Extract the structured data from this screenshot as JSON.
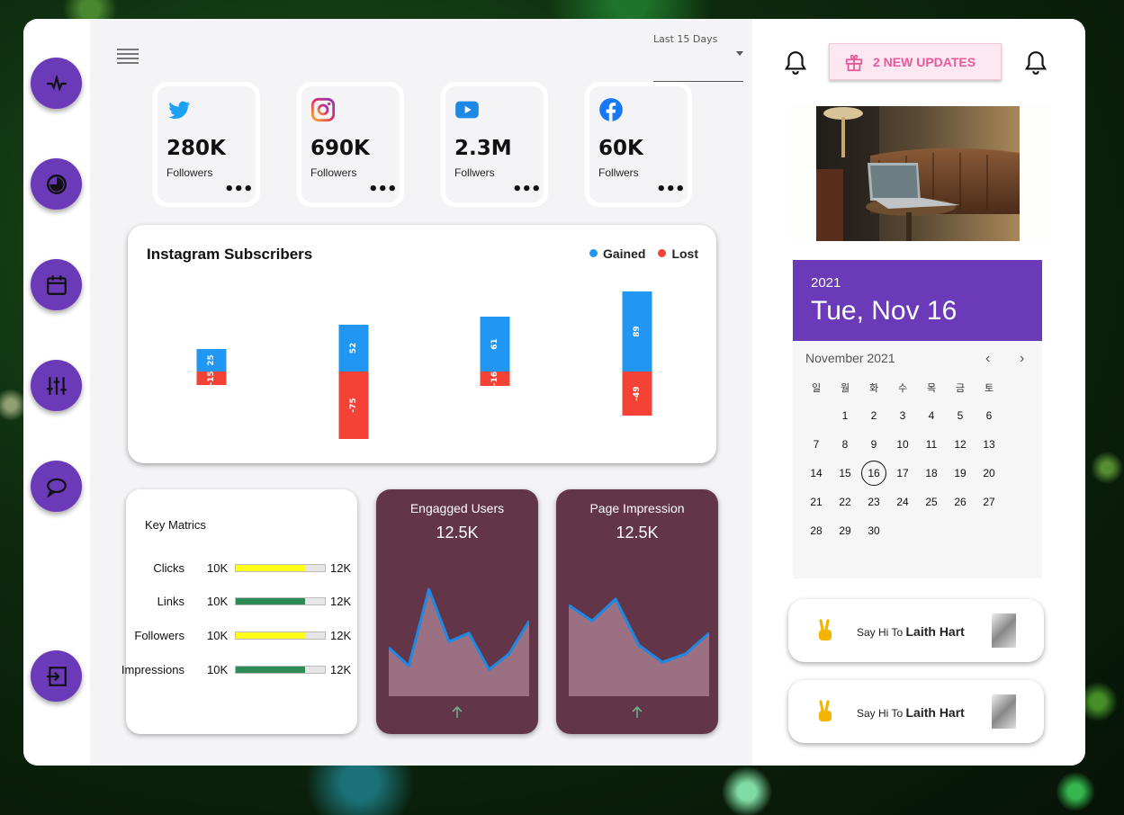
{
  "colors": {
    "accent": "#6a3ab8",
    "gained": "#2196f3",
    "lost": "#f44336",
    "metric_bg": "#633549",
    "update_text": "#e85a9a"
  },
  "sidebar": {
    "icons": [
      "activity-icon",
      "pie-chart-icon",
      "calendar-icon",
      "sliders-icon",
      "chat-icon",
      "logout-icon"
    ]
  },
  "header": {
    "period_label": "Last 15 Days",
    "period_value": ""
  },
  "socials": [
    {
      "icon": "twitter-icon",
      "count": "280K",
      "label": "Followers",
      "more": "•••"
    },
    {
      "icon": "instagram-icon",
      "count": "690K",
      "label": "Followers",
      "more": "•••"
    },
    {
      "icon": "youtube-icon",
      "count": "2.3M",
      "label": "Follwers",
      "more": "•••"
    },
    {
      "icon": "facebook-icon",
      "count": "60K",
      "label": "Follwers",
      "more": "•••"
    }
  ],
  "subscribers": {
    "title": "Instagram Subscribers",
    "legend": {
      "gained": "Gained",
      "lost": "Lost"
    }
  },
  "chart_data": {
    "type": "bar",
    "title": "Instagram Subscribers",
    "categories": [
      "",
      "",
      "",
      ""
    ],
    "series": [
      {
        "name": "Gained",
        "values": [
          25,
          52,
          61,
          89
        ]
      },
      {
        "name": "Lost",
        "values": [
          -15,
          -75,
          -16,
          -49
        ]
      }
    ],
    "stacked": true,
    "legend": "top-right",
    "grid": false
  },
  "key_metrics": {
    "title": "Key Matrics",
    "rows": [
      {
        "name": "Clicks",
        "low": "10K",
        "high": "12K",
        "fill": 0.78,
        "color": "#ffff1a"
      },
      {
        "name": "Links",
        "low": "10K",
        "high": "12K",
        "fill": 0.78,
        "color": "#2e8b57"
      },
      {
        "name": "Followers",
        "low": "10K",
        "high": "12K",
        "fill": 0.78,
        "color": "#ffff1a"
      },
      {
        "name": "Impressions",
        "low": "10K",
        "high": "12K",
        "fill": 0.78,
        "color": "#2e8b57"
      }
    ]
  },
  "metrics": [
    {
      "title": "Engagged Users",
      "value": "12.5K",
      "trend": [
        40,
        25,
        88,
        45,
        52,
        22,
        35,
        62
      ]
    },
    {
      "title": "Page Impression",
      "value": "12.5K",
      "trend": [
        75,
        62,
        80,
        42,
        28,
        35,
        52
      ]
    }
  ],
  "updates": {
    "label": "2 NEW UPDATES"
  },
  "calendar": {
    "year": "2021",
    "date_label": "Tue, Nov 16",
    "month_label": "November 2021",
    "weekdays": [
      "일",
      "월",
      "화",
      "수",
      "목",
      "금",
      "토"
    ],
    "first_weekday": 1,
    "days_in_month": 30,
    "selected": 16,
    "prev": "‹",
    "next": "›"
  },
  "greetings": [
    {
      "prefix": "Say Hi To",
      "name": "Laith Hart"
    },
    {
      "prefix": "Say Hi To",
      "name": "Laith Hart"
    }
  ]
}
